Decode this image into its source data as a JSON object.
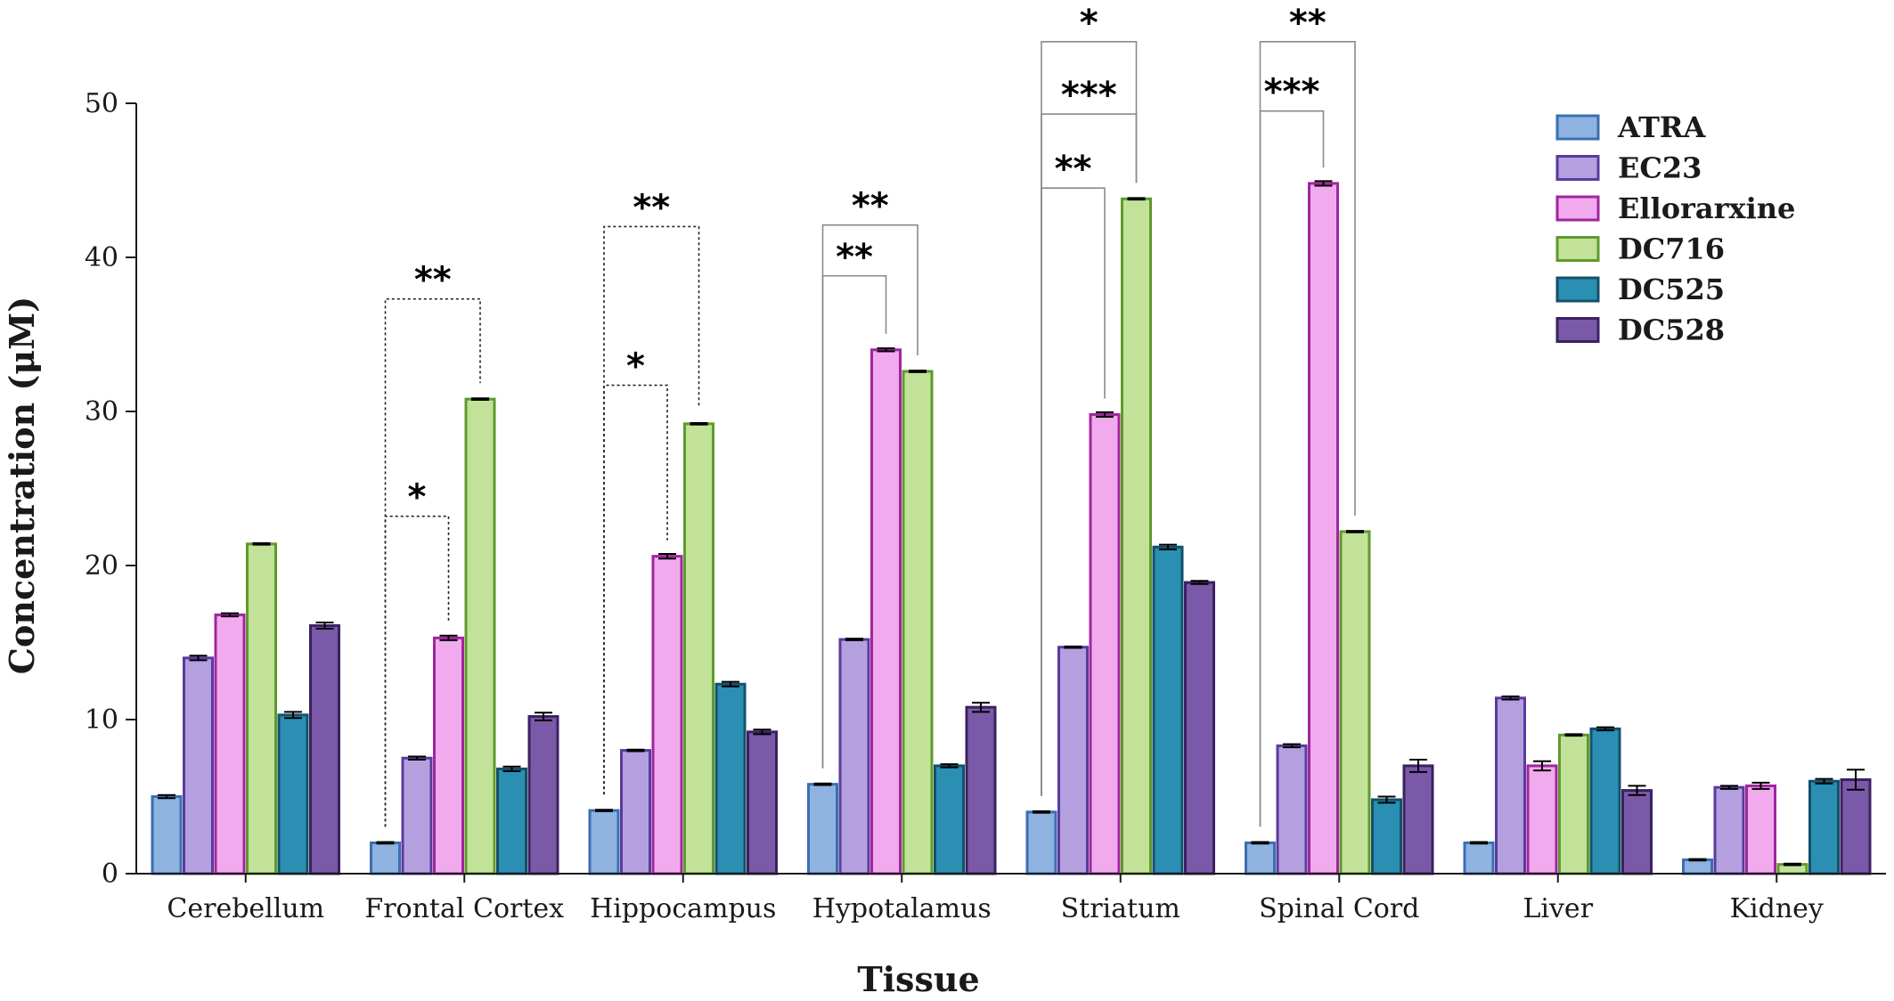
{
  "chart_data": {
    "type": "bar",
    "title": "",
    "xlabel": "Tissue",
    "ylabel": "Concentration (μM)",
    "ylim": [
      0,
      50
    ],
    "yticks": [
      0,
      10,
      20,
      30,
      40,
      50
    ],
    "grid": false,
    "legend_position": "top-right",
    "categories": [
      "Cerebellum",
      "Frontal Cortex",
      "Hippocampus",
      "Hypotalamus",
      "Striatum",
      "Spinal Cord",
      "Liver",
      "Kidney"
    ],
    "series": [
      {
        "name": "ATRA",
        "fill": "#8fb3e0",
        "stroke": "#3a6fb0",
        "values": [
          5.0,
          2.0,
          4.1,
          5.8,
          4.0,
          2.0,
          2.0,
          0.9
        ],
        "errors": [
          0.1,
          0.05,
          0.05,
          0.05,
          0.05,
          0.05,
          0.05,
          0.05
        ]
      },
      {
        "name": "EC23",
        "fill": "#b4a0de",
        "stroke": "#5b3a9e",
        "values": [
          14.0,
          7.5,
          8.0,
          15.2,
          14.7,
          8.3,
          11.4,
          5.6
        ],
        "errors": [
          0.15,
          0.1,
          0.05,
          0.05,
          0.05,
          0.1,
          0.1,
          0.1
        ]
      },
      {
        "name": "Ellorarxine",
        "fill": "#f2aaee",
        "stroke": "#a0259e",
        "values": [
          16.8,
          15.3,
          20.6,
          34.0,
          29.8,
          44.8,
          7.0,
          5.7
        ],
        "errors": [
          0.1,
          0.15,
          0.15,
          0.1,
          0.15,
          0.15,
          0.3,
          0.2
        ]
      },
      {
        "name": "DC716",
        "fill": "#c2e29a",
        "stroke": "#5f9a2b",
        "values": [
          21.4,
          30.8,
          29.2,
          32.6,
          43.8,
          22.2,
          9.0,
          0.6
        ],
        "errors": [
          0.05,
          0.05,
          0.05,
          0.05,
          0.05,
          0.05,
          0.05,
          0.05
        ]
      },
      {
        "name": "DC525",
        "fill": "#2a8fb3",
        "stroke": "#14506a",
        "values": [
          10.3,
          6.8,
          12.3,
          7.0,
          21.2,
          4.8,
          9.4,
          6.0
        ],
        "errors": [
          0.2,
          0.15,
          0.15,
          0.1,
          0.15,
          0.2,
          0.1,
          0.15
        ]
      },
      {
        "name": "DC528",
        "fill": "#7a5aa8",
        "stroke": "#3a2260",
        "values": [
          16.1,
          10.2,
          9.2,
          10.8,
          18.9,
          7.0,
          5.4,
          6.1
        ],
        "errors": [
          0.2,
          0.25,
          0.15,
          0.3,
          0.1,
          0.4,
          0.3,
          0.65
        ]
      }
    ],
    "annotations": [
      {
        "category": 1,
        "from": 0,
        "to": 3,
        "level": 37.3,
        "label": "**",
        "style": "dotted"
      },
      {
        "category": 1,
        "from": 0,
        "to": 2,
        "level": 23.2,
        "label": "*",
        "style": "dotted"
      },
      {
        "category": 2,
        "from": 0,
        "to": 3,
        "level": 42.0,
        "label": "**",
        "style": "dotted"
      },
      {
        "category": 2,
        "from": 0,
        "to": 2,
        "level": 31.7,
        "label": "*",
        "style": "dotted"
      },
      {
        "category": 3,
        "from": 0,
        "to": 3,
        "level": 42.1,
        "label": "**",
        "style": "solid"
      },
      {
        "category": 3,
        "from": 0,
        "to": 2,
        "level": 38.8,
        "label": "**",
        "style": "solid"
      },
      {
        "category": 4,
        "from": 0,
        "to": 3,
        "level": 54.0,
        "label": "*",
        "style": "solid"
      },
      {
        "category": 4,
        "from": 0,
        "to": 3,
        "level": 49.3,
        "label": "***",
        "style": "solid"
      },
      {
        "category": 4,
        "from": 0,
        "to": 2,
        "level": 44.5,
        "label": "**",
        "style": "solid"
      },
      {
        "category": 5,
        "from": 0,
        "to": 3,
        "level": 54.0,
        "label": "**",
        "style": "solid"
      },
      {
        "category": 5,
        "from": 0,
        "to": 2,
        "level": 49.5,
        "label": "***",
        "style": "solid"
      }
    ]
  }
}
